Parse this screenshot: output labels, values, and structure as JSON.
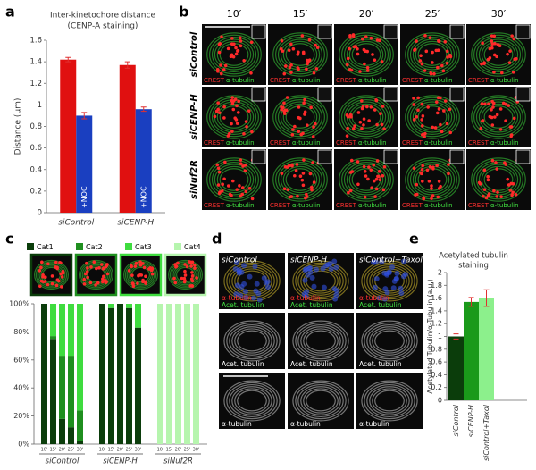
{
  "panel_labels": [
    "a",
    "b",
    "c",
    "d",
    "e"
  ],
  "chart_data": [
    {
      "type": "bar",
      "title": [
        "Inter-kinetochore distance",
        "(CENP-A staining)"
      ],
      "y_label": "Distance (μm)",
      "categories": [
        "siControl",
        "siCENP-H"
      ],
      "series": [
        {
          "color": "#e01010",
          "values": [
            1.42,
            1.37
          ],
          "errors": [
            0.02,
            0.03
          ]
        },
        {
          "name": "+NOC",
          "color": "#1a3fc0",
          "values": [
            0.9,
            0.96
          ],
          "errors": [
            0.03,
            0.02
          ]
        }
      ],
      "ylim": [
        0,
        1.6
      ],
      "yticks": [
        0,
        0.2,
        0.4,
        0.6,
        0.8,
        1,
        1.2,
        1.4,
        1.6
      ]
    },
    {
      "type": "stacked_bar",
      "categories": [
        "10'",
        "15'",
        "20'",
        "25'",
        "30'",
        "10'",
        "15'",
        "20'",
        "25'",
        "30'",
        "10'",
        "15'",
        "20'",
        "25'",
        "30'"
      ],
      "groups": [
        "siControl",
        "siCENP-H",
        "siNuf2R"
      ],
      "series": [
        {
          "name": "Cat1",
          "color": "#0b3d0b",
          "values": [
            100,
            75,
            18,
            12,
            2,
            100,
            97,
            100,
            97,
            83,
            0,
            0,
            0,
            0,
            0
          ]
        },
        {
          "name": "Cat2",
          "color": "#1f8f1f",
          "values": [
            0,
            2,
            45,
            51,
            22,
            0,
            0,
            0,
            0,
            0,
            0,
            0,
            0,
            0,
            0
          ]
        },
        {
          "name": "Cat3",
          "color": "#3fdc3f",
          "values": [
            0,
            23,
            37,
            37,
            76,
            0,
            3,
            0,
            3,
            17,
            0,
            0,
            0,
            0,
            0
          ]
        },
        {
          "name": "Cat4",
          "color": "#b6f5ae",
          "values": [
            0,
            0,
            0,
            0,
            0,
            0,
            0,
            0,
            0,
            0,
            100,
            100,
            100,
            100,
            100
          ]
        }
      ],
      "ylim": [
        0,
        100
      ],
      "yticks": [
        {
          "value": 0,
          "label": "0%"
        },
        {
          "value": 20,
          "label": "20%"
        },
        {
          "value": 40,
          "label": "40%"
        },
        {
          "value": 60,
          "label": "60%"
        },
        {
          "value": 80,
          "label": "80%"
        },
        {
          "value": 100,
          "label": "100%"
        }
      ]
    },
    {
      "type": "bar",
      "title": [
        "Acetylated tubulin",
        "staining"
      ],
      "y_label": "Acetylated Tubulin/α-Tubulin (a.u.)",
      "categories": [
        "siControl",
        "siCENP-H",
        "siControl+Taxol"
      ],
      "values": [
        1,
        1.54,
        1.6
      ],
      "errors": [
        0.04,
        0.07,
        0.13
      ],
      "colors": [
        "#0b3d0b",
        "#1a9a1a",
        "#8cf08c"
      ],
      "ylim": [
        0,
        2
      ],
      "yticks": [
        0,
        0.2,
        0.4,
        0.6,
        0.8,
        1,
        1.2,
        1.4,
        1.6,
        1.8,
        2
      ]
    }
  ],
  "micrographs_b": {
    "times": [
      "10′",
      "15′",
      "20′",
      "25′",
      "30′"
    ],
    "rows": [
      "siControl",
      "siCENP-H",
      "siNuf2R"
    ],
    "stains": [
      "CREST",
      "α-tubulin"
    ]
  },
  "micrographs_d": {
    "columns": [
      "siControl",
      "siCENP-H",
      "siControl+Taxol"
    ],
    "row_labels": [
      [
        "α-tubulin",
        "Acet. tubulin"
      ],
      [
        "Acet. tubulin"
      ],
      [
        "α-tubulin"
      ]
    ]
  }
}
